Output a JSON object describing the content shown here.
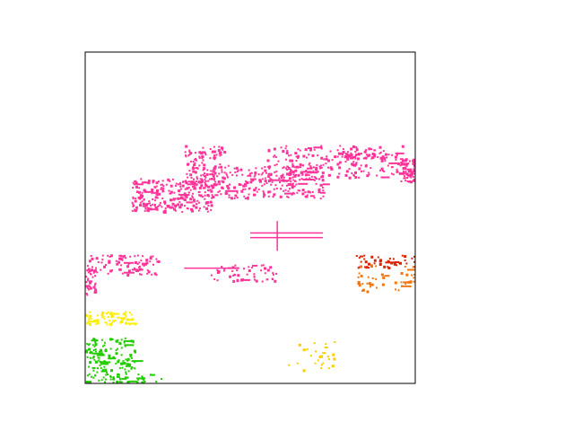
{
  "chart_data": {
    "type": "scatter",
    "title": "",
    "xlabel": "",
    "ylabel": "",
    "xlim": [
      0,
      1
    ],
    "ylim": [
      0,
      1
    ],
    "axes_visible": false,
    "grid": false,
    "legend": "none",
    "marker": "square",
    "series": [
      {
        "color": "#ff3399",
        "clusters": [
          {
            "x": [
              0.14,
              0.38
            ],
            "y": [
              0.52,
              0.62
            ],
            "n": 260,
            "streaks": 10
          },
          {
            "x": [
              0.38,
              0.72
            ],
            "y": [
              0.56,
              0.66
            ],
            "n": 240,
            "streaks": 12
          },
          {
            "x": [
              0.3,
              0.42
            ],
            "y": [
              0.6,
              0.72
            ],
            "n": 120,
            "streaks": 0
          },
          {
            "x": [
              0.55,
              0.82
            ],
            "y": [
              0.62,
              0.72
            ],
            "n": 120,
            "streaks": 4
          },
          {
            "x": [
              0.75,
              0.96
            ],
            "y": [
              0.62,
              0.72
            ],
            "n": 70,
            "streaks": 3
          },
          {
            "x": [
              0.76,
              0.92
            ],
            "y": [
              0.68,
              0.7
            ],
            "n": 40,
            "streaks": 0
          },
          {
            "x": [
              0.95,
              1.0
            ],
            "y": [
              0.61,
              0.68
            ],
            "n": 70,
            "streaks": 0
          },
          {
            "x": [
              0.0,
              0.22
            ],
            "y": [
              0.33,
              0.39
            ],
            "n": 90,
            "streaks": 4
          },
          {
            "x": [
              0.0,
              0.03
            ],
            "y": [
              0.27,
              0.35
            ],
            "n": 30,
            "streaks": 0
          },
          {
            "x": [
              0.38,
              0.58
            ],
            "y": [
              0.31,
              0.36
            ],
            "n": 50,
            "streaks": 3
          }
        ],
        "lines": [
          {
            "x": [
              0.5,
              0.72
            ],
            "y": [
              0.456,
              0.456
            ]
          },
          {
            "x": [
              0.5,
              0.72
            ],
            "y": [
              0.442,
              0.442
            ]
          },
          {
            "x": [
              0.58,
              0.58
            ],
            "y": [
              0.4,
              0.49
            ]
          },
          {
            "x": [
              0.3,
              0.44
            ],
            "y": [
              0.35,
              0.35
            ]
          }
        ]
      },
      {
        "color": "#dd2200",
        "clusters": [
          {
            "x": [
              0.82,
              1.0
            ],
            "y": [
              0.35,
              0.39
            ],
            "n": 40,
            "streaks": 3
          }
        ],
        "lines": []
      },
      {
        "color": "#ee7711",
        "clusters": [
          {
            "x": [
              0.82,
              1.0
            ],
            "y": [
              0.28,
              0.36
            ],
            "n": 45,
            "streaks": 4
          }
        ],
        "lines": []
      },
      {
        "color": "#ffee00",
        "clusters": [
          {
            "x": [
              0.0,
              0.15
            ],
            "y": [
              0.18,
              0.22
            ],
            "n": 60,
            "streaks": 5
          }
        ],
        "lines": []
      },
      {
        "color": "#ffcc00",
        "clusters": [
          {
            "x": [
              0.6,
              0.77
            ],
            "y": [
              0.04,
              0.13
            ],
            "n": 25,
            "streaks": 2
          }
        ],
        "lines": []
      },
      {
        "color": "#22cc00",
        "clusters": [
          {
            "x": [
              0.0,
              0.15
            ],
            "y": [
              0.0,
              0.14
            ],
            "n": 150,
            "streaks": 14
          },
          {
            "x": [
              0.15,
              0.24
            ],
            "y": [
              0.0,
              0.03
            ],
            "n": 15,
            "streaks": 2
          }
        ],
        "lines": []
      }
    ]
  }
}
